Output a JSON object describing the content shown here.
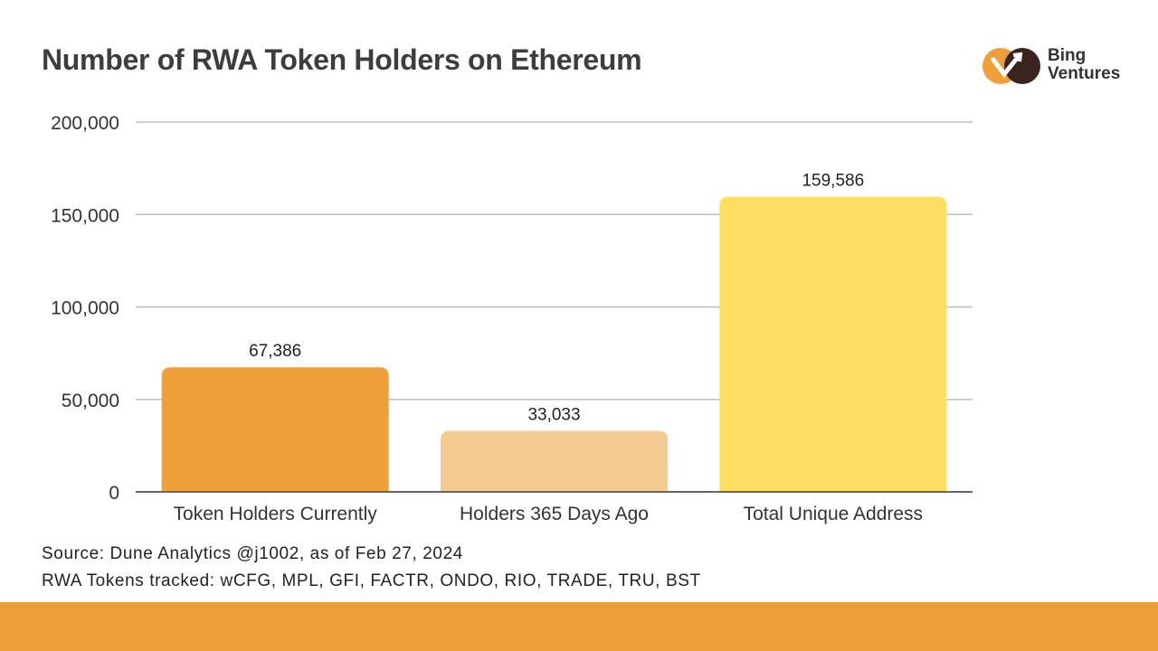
{
  "chart_data": {
    "type": "bar",
    "title": "Number of RWA Token Holders on Ethereum",
    "categories": [
      "Token Holders Currently",
      "Holders 365 Days Ago",
      "Total Unique Address"
    ],
    "values": [
      67386,
      33033,
      159586
    ],
    "data_labels": [
      "67,386",
      "33,033",
      "159,586"
    ],
    "colors": [
      "#ef9f3a",
      "#f5cb91",
      "#fede60"
    ],
    "ylim": [
      0,
      200000
    ],
    "yticks": [
      0,
      50000,
      100000,
      150000,
      200000
    ],
    "ytick_labels": [
      "0",
      "50,000",
      "100,000",
      "150,000",
      "200,000"
    ],
    "grid": true,
    "xlabel": "",
    "ylabel": ""
  },
  "logo": {
    "line1": "Bing",
    "line2": "Ventures"
  },
  "footer": {
    "source": "Source: Dune Analytics @j1002, as of Feb 27, 2024",
    "tokens": "RWA Tokens tracked: wCFG, MPL, GFI, FACTR, ONDO, RIO, TRADE, TRU, BST",
    "band_color": "#ef9f3a"
  }
}
